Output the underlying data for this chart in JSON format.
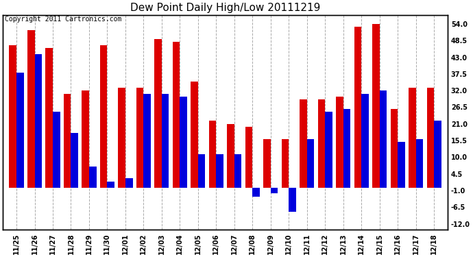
{
  "title": "Dew Point Daily High/Low 20111219",
  "copyright": "Copyright 2011 Cartronics.com",
  "dates": [
    "11/25",
    "11/26",
    "11/27",
    "11/28",
    "11/29",
    "11/30",
    "12/01",
    "12/02",
    "12/03",
    "12/04",
    "12/05",
    "12/06",
    "12/07",
    "12/08",
    "12/09",
    "12/10",
    "12/11",
    "12/12",
    "12/13",
    "12/14",
    "12/15",
    "12/16",
    "12/17",
    "12/18"
  ],
  "highs": [
    47,
    52,
    46,
    31,
    32,
    47,
    33,
    33,
    49,
    48,
    35,
    22,
    21,
    20,
    16,
    16,
    29,
    29,
    30,
    53,
    54,
    26,
    33,
    33
  ],
  "lows": [
    38,
    44,
    25,
    18,
    7,
    2,
    3,
    31,
    31,
    30,
    11,
    11,
    11,
    -3,
    -2,
    -8,
    16,
    25,
    26,
    31,
    32,
    15,
    16,
    22
  ],
  "high_color": "#dd0000",
  "low_color": "#0000dd",
  "bg_color": "#ffffff",
  "plot_bg_color": "#ffffff",
  "grid_color": "#aaaaaa",
  "ylim_min": -14.0,
  "ylim_max": 57.0,
  "yticks": [
    -12.0,
    -6.5,
    -1.0,
    4.5,
    10.0,
    15.5,
    21.0,
    26.5,
    32.0,
    37.5,
    43.0,
    48.5,
    54.0
  ],
  "title_fontsize": 11,
  "tick_fontsize": 7,
  "bar_width": 0.4,
  "copyright_fontsize": 7
}
